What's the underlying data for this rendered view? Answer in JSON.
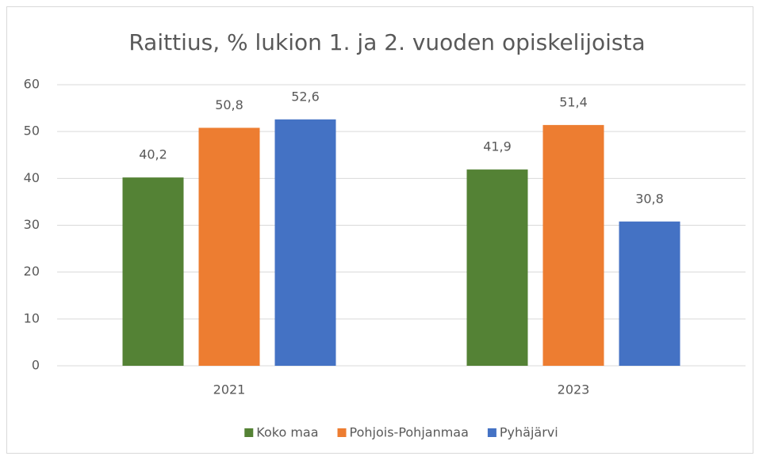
{
  "chart_data": {
    "type": "bar",
    "title": "Raittius, % lukion 1. ja 2. vuoden opiskelijoista",
    "categories": [
      "2021",
      "2023"
    ],
    "series": [
      {
        "name": "Koko maa",
        "color": "#548235",
        "values": [
          40.2,
          41.9
        ],
        "value_labels": [
          "40,2",
          "41,9"
        ]
      },
      {
        "name": "Pohjois-Pohjanmaa",
        "color": "#ed7d31",
        "values": [
          50.8,
          51.4
        ],
        "value_labels": [
          "50,8",
          "51,4"
        ]
      },
      {
        "name": "Pyhäjärvi",
        "color": "#4472c4",
        "values": [
          52.6,
          30.8
        ],
        "value_labels": [
          "52,6",
          "30,8"
        ]
      }
    ],
    "ylim": [
      0,
      60
    ],
    "yticks": [
      0,
      10,
      20,
      30,
      40,
      50,
      60
    ],
    "grid": true,
    "legend": "bottom"
  }
}
